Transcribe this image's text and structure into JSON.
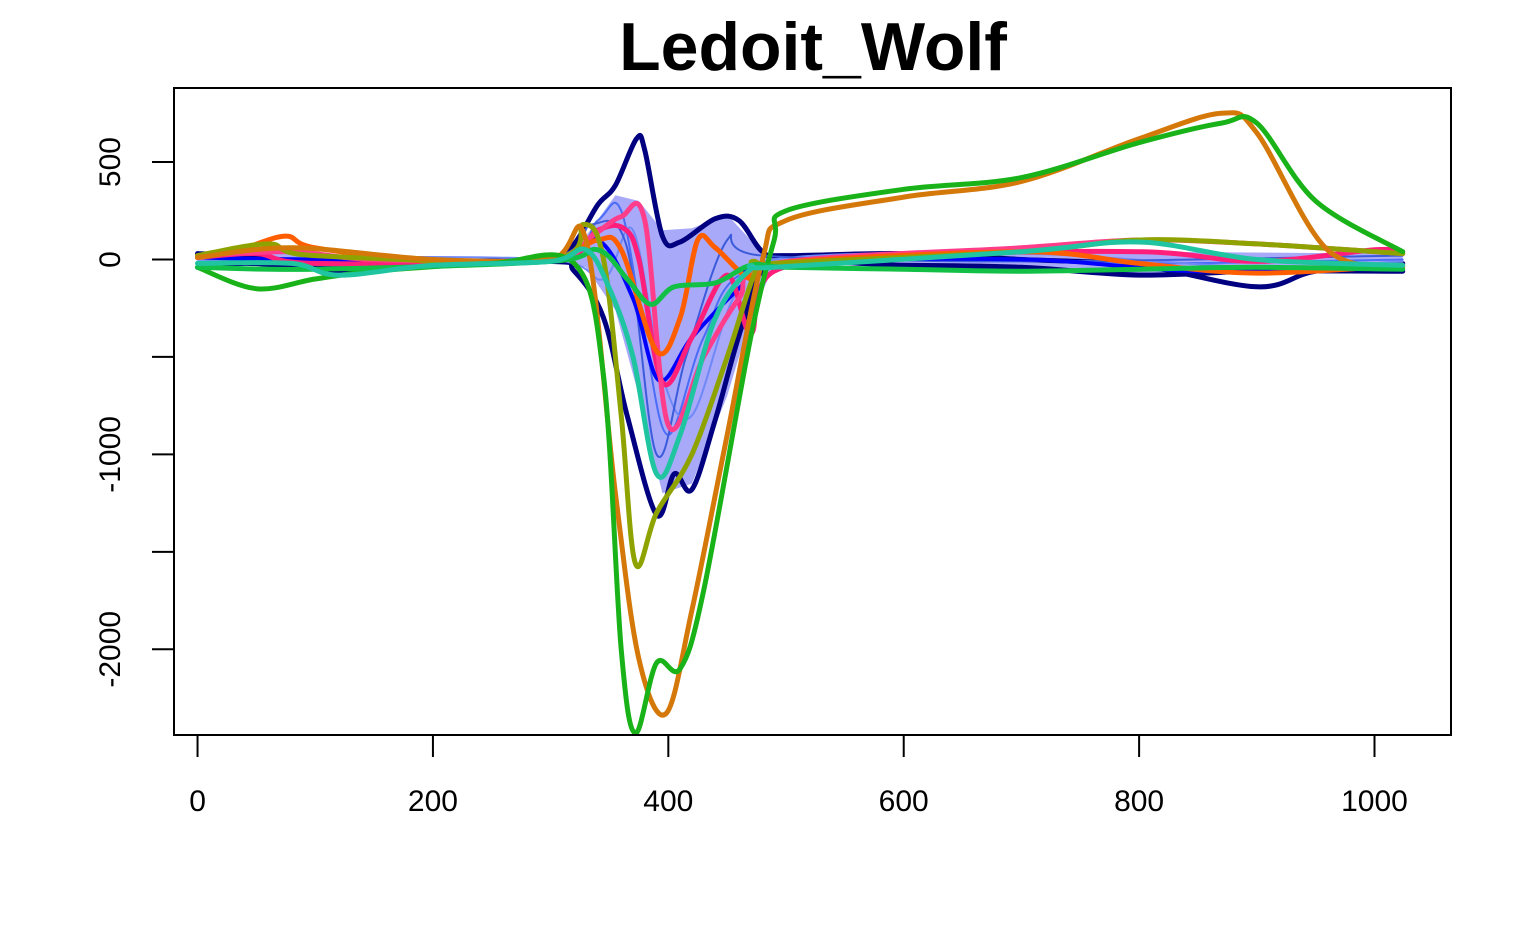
{
  "chart_data": {
    "type": "line",
    "title": "Ledoit_Wolf",
    "xlabel": "",
    "ylabel": "",
    "xlim": [
      -20,
      1065
    ],
    "ylim": [
      -2440,
      880
    ],
    "x_ticks": [
      0,
      200,
      400,
      600,
      800,
      1000
    ],
    "y_ticks": [
      500,
      0,
      -1000,
      -2000
    ],
    "y_tick_marks": [
      500,
      0,
      -500,
      -1000,
      -1500,
      -2000
    ],
    "grid": false,
    "legend": "none",
    "band": {
      "color": "#9a9af8",
      "upper": [
        [
          0,
          20
        ],
        [
          80,
          30
        ],
        [
          200,
          0
        ],
        [
          300,
          0
        ],
        [
          330,
          120
        ],
        [
          355,
          330
        ],
        [
          375,
          300
        ],
        [
          395,
          150
        ],
        [
          420,
          160
        ],
        [
          450,
          230
        ],
        [
          470,
          100
        ],
        [
          490,
          10
        ],
        [
          600,
          20
        ],
        [
          800,
          40
        ],
        [
          1024,
          30
        ]
      ],
      "lower": [
        [
          0,
          -20
        ],
        [
          80,
          -30
        ],
        [
          200,
          -10
        ],
        [
          300,
          -10
        ],
        [
          330,
          -40
        ],
        [
          355,
          -260
        ],
        [
          375,
          -700
        ],
        [
          395,
          -1200
        ],
        [
          420,
          -1150
        ],
        [
          450,
          -700
        ],
        [
          470,
          -300
        ],
        [
          490,
          -30
        ],
        [
          600,
          -30
        ],
        [
          800,
          -80
        ],
        [
          1024,
          -40
        ]
      ]
    },
    "series": [
      {
        "color": "#000080",
        "width": 5,
        "points": [
          [
            0,
            30
          ],
          [
            40,
            20
          ],
          [
            80,
            -10
          ],
          [
            120,
            -60
          ],
          [
            150,
            -40
          ],
          [
            200,
            -10
          ],
          [
            300,
            0
          ],
          [
            320,
            80
          ],
          [
            340,
            280
          ],
          [
            355,
            380
          ],
          [
            373,
            620
          ],
          [
            380,
            560
          ],
          [
            395,
            120
          ],
          [
            410,
            90
          ],
          [
            440,
            210
          ],
          [
            460,
            200
          ],
          [
            480,
            40
          ],
          [
            500,
            20
          ],
          [
            600,
            30
          ],
          [
            700,
            0
          ],
          [
            800,
            -30
          ],
          [
            900,
            -140
          ],
          [
            950,
            -60
          ],
          [
            1024,
            -20
          ]
        ]
      },
      {
        "color": "#000080",
        "width": 5,
        "points": [
          [
            0,
            -40
          ],
          [
            40,
            -20
          ],
          [
            80,
            -30
          ],
          [
            150,
            -20
          ],
          [
            300,
            -10
          ],
          [
            320,
            -60
          ],
          [
            345,
            -300
          ],
          [
            365,
            -800
          ],
          [
            390,
            -1310
          ],
          [
            405,
            -1100
          ],
          [
            420,
            -1180
          ],
          [
            440,
            -820
          ],
          [
            465,
            -300
          ],
          [
            490,
            -30
          ],
          [
            600,
            -30
          ],
          [
            700,
            -40
          ],
          [
            800,
            -80
          ],
          [
            900,
            -60
          ],
          [
            1024,
            -60
          ]
        ]
      },
      {
        "color": "#4a6cf7",
        "width": 2,
        "points": [
          [
            0,
            10
          ],
          [
            100,
            -20
          ],
          [
            300,
            -10
          ],
          [
            340,
            200
          ],
          [
            360,
            250
          ],
          [
            380,
            -400
          ],
          [
            400,
            -900
          ],
          [
            430,
            -400
          ],
          [
            470,
            -50
          ],
          [
            600,
            10
          ],
          [
            800,
            -20
          ],
          [
            1024,
            0
          ]
        ]
      },
      {
        "color": "#6f88f7",
        "width": 2,
        "points": [
          [
            0,
            -10
          ],
          [
            100,
            10
          ],
          [
            300,
            0
          ],
          [
            345,
            -100
          ],
          [
            370,
            150
          ],
          [
            395,
            -600
          ],
          [
            420,
            -800
          ],
          [
            455,
            -200
          ],
          [
            490,
            0
          ],
          [
            700,
            30
          ],
          [
            900,
            -40
          ],
          [
            1024,
            -10
          ]
        ]
      },
      {
        "color": "#3b5bdb",
        "width": 2,
        "points": [
          [
            0,
            20
          ],
          [
            120,
            -30
          ],
          [
            300,
            10
          ],
          [
            335,
            180
          ],
          [
            365,
            60
          ],
          [
            390,
            -1000
          ],
          [
            415,
            -500
          ],
          [
            450,
            100
          ],
          [
            480,
            20
          ],
          [
            700,
            -10
          ],
          [
            1024,
            20
          ]
        ]
      },
      {
        "color": "#0000ff",
        "width": 4,
        "points": [
          [
            0,
            10
          ],
          [
            100,
            0
          ],
          [
            300,
            0
          ],
          [
            340,
            100
          ],
          [
            370,
            -200
          ],
          [
            392,
            -620
          ],
          [
            420,
            -400
          ],
          [
            460,
            -150
          ],
          [
            490,
            -20
          ],
          [
            700,
            0
          ],
          [
            850,
            -60
          ],
          [
            1024,
            -40
          ]
        ]
      },
      {
        "color": "#ff1f7a",
        "width": 5,
        "points": [
          [
            0,
            10
          ],
          [
            50,
            30
          ],
          [
            100,
            -20
          ],
          [
            300,
            0
          ],
          [
            340,
            150
          ],
          [
            362,
            160
          ],
          [
            375,
            0
          ],
          [
            395,
            -630
          ],
          [
            420,
            -400
          ],
          [
            450,
            -80
          ],
          [
            470,
            -380
          ],
          [
            490,
            -60
          ],
          [
            600,
            20
          ],
          [
            800,
            40
          ],
          [
            900,
            -10
          ],
          [
            1000,
            50
          ],
          [
            1024,
            40
          ]
        ]
      },
      {
        "color": "#ff3d8b",
        "width": 5,
        "points": [
          [
            0,
            20
          ],
          [
            80,
            40
          ],
          [
            150,
            0
          ],
          [
            300,
            0
          ],
          [
            335,
            120
          ],
          [
            360,
            220
          ],
          [
            380,
            200
          ],
          [
            400,
            -850
          ],
          [
            430,
            -500
          ],
          [
            460,
            -200
          ],
          [
            490,
            -20
          ],
          [
            700,
            60
          ],
          [
            800,
            100
          ],
          [
            900,
            80
          ],
          [
            1024,
            30
          ]
        ]
      },
      {
        "color": "#ff5e00",
        "width": 5,
        "points": [
          [
            0,
            10
          ],
          [
            40,
            60
          ],
          [
            75,
            120
          ],
          [
            100,
            60
          ],
          [
            200,
            -10
          ],
          [
            300,
            0
          ],
          [
            340,
            100
          ],
          [
            360,
            50
          ],
          [
            390,
            -470
          ],
          [
            410,
            -300
          ],
          [
            425,
            100
          ],
          [
            440,
            60
          ],
          [
            470,
            -100
          ],
          [
            490,
            -20
          ],
          [
            700,
            40
          ],
          [
            800,
            -20
          ],
          [
            900,
            -70
          ],
          [
            1024,
            -30
          ]
        ]
      },
      {
        "color": "#8fa300",
        "width": 5,
        "points": [
          [
            0,
            20
          ],
          [
            60,
            80
          ],
          [
            100,
            20
          ],
          [
            300,
            0
          ],
          [
            328,
            180
          ],
          [
            345,
            0
          ],
          [
            360,
            -800
          ],
          [
            372,
            -1560
          ],
          [
            390,
            -1300
          ],
          [
            420,
            -1000
          ],
          [
            450,
            -500
          ],
          [
            475,
            -50
          ],
          [
            490,
            -20
          ],
          [
            700,
            40
          ],
          [
            800,
            100
          ],
          [
            900,
            80
          ],
          [
            1024,
            30
          ]
        ]
      },
      {
        "color": "#d4780a",
        "width": 5,
        "points": [
          [
            0,
            10
          ],
          [
            80,
            60
          ],
          [
            200,
            0
          ],
          [
            300,
            0
          ],
          [
            330,
            100
          ],
          [
            355,
            -1200
          ],
          [
            375,
            -2050
          ],
          [
            398,
            -2330
          ],
          [
            420,
            -1800
          ],
          [
            450,
            -900
          ],
          [
            480,
            0
          ],
          [
            500,
            200
          ],
          [
            600,
            320
          ],
          [
            700,
            400
          ],
          [
            800,
            620
          ],
          [
            870,
            750
          ],
          [
            900,
            650
          ],
          [
            960,
            50
          ],
          [
            1024,
            -40
          ]
        ]
      },
      {
        "color": "#19b319",
        "width": 5,
        "points": [
          [
            0,
            -40
          ],
          [
            50,
            -150
          ],
          [
            100,
            -100
          ],
          [
            150,
            -60
          ],
          [
            250,
            -20
          ],
          [
            320,
            -20
          ],
          [
            345,
            -600
          ],
          [
            360,
            -2000
          ],
          [
            372,
            -2430
          ],
          [
            390,
            -2070
          ],
          [
            410,
            -2100
          ],
          [
            430,
            -1700
          ],
          [
            470,
            -400
          ],
          [
            490,
            100
          ],
          [
            500,
            250
          ],
          [
            600,
            360
          ],
          [
            700,
            420
          ],
          [
            800,
            600
          ],
          [
            870,
            700
          ],
          [
            900,
            700
          ],
          [
            950,
            300
          ],
          [
            1024,
            40
          ]
        ]
      },
      {
        "color": "#11c044",
        "width": 5,
        "points": [
          [
            0,
            -40
          ],
          [
            100,
            -50
          ],
          [
            300,
            -10
          ],
          [
            340,
            50
          ],
          [
            365,
            -100
          ],
          [
            385,
            -230
          ],
          [
            405,
            -140
          ],
          [
            440,
            -120
          ],
          [
            470,
            -30
          ],
          [
            500,
            -40
          ],
          [
            600,
            -50
          ],
          [
            700,
            -60
          ],
          [
            800,
            -50
          ],
          [
            900,
            -40
          ],
          [
            1024,
            -50
          ]
        ]
      },
      {
        "color": "#1fc4a0",
        "width": 5,
        "points": [
          [
            0,
            -20
          ],
          [
            80,
            -20
          ],
          [
            120,
            -80
          ],
          [
            200,
            -30
          ],
          [
            300,
            -10
          ],
          [
            330,
            50
          ],
          [
            350,
            -150
          ],
          [
            370,
            -500
          ],
          [
            390,
            -1100
          ],
          [
            410,
            -900
          ],
          [
            440,
            -300
          ],
          [
            470,
            -50
          ],
          [
            490,
            -40
          ],
          [
            700,
            40
          ],
          [
            800,
            90
          ],
          [
            900,
            0
          ],
          [
            1024,
            -30
          ]
        ]
      }
    ]
  }
}
